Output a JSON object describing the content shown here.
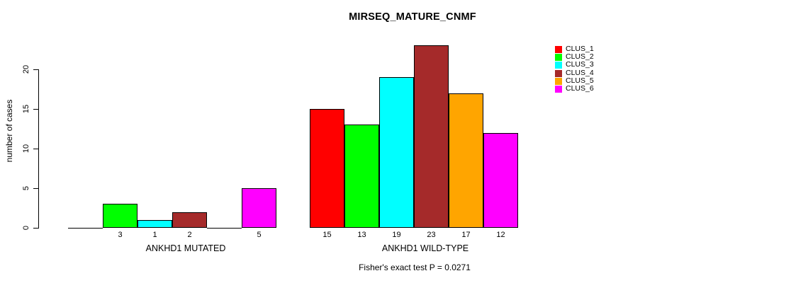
{
  "title": "MIRSEQ_MATURE_CNMF",
  "y_axis": {
    "label": "number of cases",
    "ticks": [
      0,
      5,
      10,
      15,
      20
    ]
  },
  "groups": [
    {
      "label": "ANKHD1 MUTATED",
      "bar_labels": [
        "",
        "3",
        "1",
        "2",
        "",
        "5"
      ]
    },
    {
      "label": "ANKHD1 WILD-TYPE",
      "bar_labels": [
        "15",
        "13",
        "19",
        "23",
        "17",
        "12"
      ]
    }
  ],
  "legend": [
    {
      "label": "CLUS_1",
      "color": "#FF0000"
    },
    {
      "label": "CLUS_2",
      "color": "#00FF00"
    },
    {
      "label": "CLUS_3",
      "color": "#00FFFF"
    },
    {
      "label": "CLUS_4",
      "color": "#A52A2A"
    },
    {
      "label": "CLUS_5",
      "color": "#FFA500"
    },
    {
      "label": "CLUS_6",
      "color": "#FF00FF"
    }
  ],
  "footer": "Fisher's exact test P = 0.0271",
  "chart_data": {
    "type": "bar",
    "title": "MIRSEQ_MATURE_CNMF",
    "xlabel": "",
    "ylabel": "number of cases",
    "ylim": [
      0,
      23
    ],
    "y_ticks": [
      0,
      5,
      10,
      15,
      20
    ],
    "categories": [
      "ANKHD1 MUTATED",
      "ANKHD1 WILD-TYPE"
    ],
    "series": [
      {
        "name": "CLUS_1",
        "color": "#FF0000",
        "values": [
          0,
          15
        ]
      },
      {
        "name": "CLUS_2",
        "color": "#00FF00",
        "values": [
          3,
          13
        ]
      },
      {
        "name": "CLUS_3",
        "color": "#00FFFF",
        "values": [
          1,
          19
        ]
      },
      {
        "name": "CLUS_4",
        "color": "#A52A2A",
        "values": [
          2,
          23
        ]
      },
      {
        "name": "CLUS_5",
        "color": "#FFA500",
        "values": [
          0,
          17
        ]
      },
      {
        "name": "CLUS_6",
        "color": "#FF00FF",
        "values": [
          5,
          12
        ]
      }
    ],
    "annotation": "Fisher's exact test P = 0.0271",
    "legend_position": "right",
    "grid": false,
    "bar_border_color": "#000000"
  }
}
